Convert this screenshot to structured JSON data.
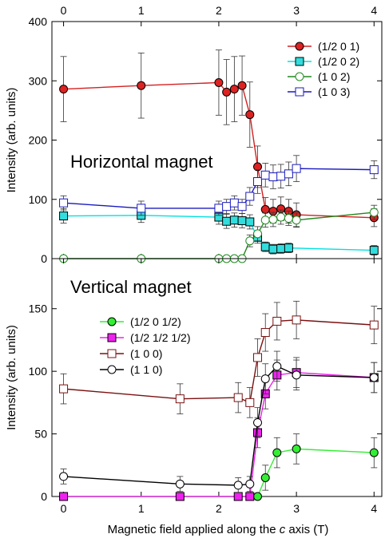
{
  "chart_data": {
    "type": "line",
    "xlabel_prefix": "Magnetic field applied along the ",
    "xlabel_italic": "c",
    "xlabel_suffix": " axis (T)",
    "xlim": [
      -0.15,
      4.1
    ],
    "xticks": [
      0,
      1,
      2,
      3,
      4
    ],
    "panels": [
      {
        "title": "Horizontal magnet",
        "ylabel": "Intensity (arb. units)",
        "ylim": [
          0,
          400
        ],
        "yticks": [
          0,
          100,
          200,
          300,
          400
        ],
        "legend": "top-right",
        "series": [
          {
            "name": "(1/2 0 1)",
            "color": "#d42020",
            "marker": "circle",
            "fill": "#dd2222",
            "x": [
              0,
              1,
              2,
              2.1,
              2.2,
              2.3,
              2.4,
              2.5,
              2.6,
              2.7,
              2.8,
              2.9,
              3,
              4
            ],
            "y": [
              286,
              292,
              297,
              281,
              286,
              292,
              243,
              155,
              83,
              80,
              84,
              80,
              74,
              69
            ],
            "err": [
              55,
              55,
              55,
              55,
              55,
              50,
              55,
              35,
              20,
              20,
              20,
              20,
              20,
              15
            ]
          },
          {
            "name": "(1/2 0 2)",
            "color": "#00e0e0",
            "marker": "square",
            "fill": "#33dddd",
            "x": [
              0,
              1,
              2,
              2.1,
              2.2,
              2.3,
              2.4,
              2.5,
              2.6,
              2.7,
              2.8,
              2.9,
              4
            ],
            "y": [
              72,
              73,
              70,
              63,
              65,
              64,
              62,
              36,
              20,
              16,
              17,
              18,
              14
            ],
            "err": [
              12,
              12,
              12,
              12,
              12,
              12,
              12,
              10,
              8,
              8,
              8,
              8,
              8
            ]
          },
          {
            "name": "(1 0 2)",
            "color": "#208a20",
            "marker": "circle",
            "fill": "none",
            "x": [
              0,
              1,
              2,
              2.1,
              2.2,
              2.3,
              2.4,
              2.5,
              2.6,
              2.7,
              2.8,
              2.9,
              3,
              4
            ],
            "y": [
              0,
              0,
              0,
              0,
              0,
              0,
              30,
              42,
              65,
              66,
              70,
              68,
              65,
              78
            ],
            "err": [
              0,
              0,
              0,
              0,
              0,
              0,
              10,
              12,
              12,
              12,
              12,
              12,
              12,
              12
            ]
          },
          {
            "name": "(1 0 3)",
            "color": "#1a1abf",
            "marker": "square",
            "fill": "none",
            "x": [
              0,
              1,
              2,
              2.1,
              2.2,
              2.3,
              2.4,
              2.5,
              2.6,
              2.7,
              2.8,
              2.9,
              3,
              4
            ],
            "y": [
              94,
              85,
              85,
              88,
              94,
              88,
              105,
              130,
              141,
              138,
              139,
              143,
              152,
              150
            ],
            "err": [
              12,
              12,
              12,
              12,
              12,
              12,
              15,
              20,
              20,
              20,
              20,
              20,
              22,
              15
            ]
          }
        ]
      },
      {
        "title": "Vertical magnet",
        "ylabel": "Intensity (arb. units)",
        "ylim": [
          0,
          190
        ],
        "yticks": [
          0,
          50,
          100,
          150
        ],
        "legend": "center-left",
        "series": [
          {
            "name": "(1/2 0 1/2)",
            "color": "#33ee33",
            "marker": "circle",
            "fill": "#33ee33",
            "x": [
              0,
              1.5,
              2.25,
              2.4,
              2.5,
              2.6,
              2.75,
              3,
              4
            ],
            "y": [
              0,
              0,
              0,
              0,
              0,
              15,
              35,
              38,
              35
            ],
            "err": [
              0,
              0,
              0,
              0,
              0,
              10,
              12,
              12,
              12
            ]
          },
          {
            "name": "(1/2 1/2 1/2)",
            "color": "#ee22ee",
            "marker": "square",
            "fill": "#ee22ee",
            "x": [
              0,
              1.5,
              2.25,
              2.4,
              2.5,
              2.6,
              2.75,
              3,
              4
            ],
            "y": [
              0,
              0,
              0,
              0,
              51,
              82,
              97,
              99,
              95
            ],
            "err": [
              0,
              0,
              0,
              0,
              12,
              12,
              12,
              12,
              12
            ]
          },
          {
            "name": "(1 0 0)",
            "color": "#7a1010",
            "marker": "square",
            "fill": "none",
            "x": [
              0,
              1.5,
              2.25,
              2.4,
              2.5,
              2.6,
              2.75,
              3,
              4
            ],
            "y": [
              86,
              78,
              79,
              75,
              111,
              131,
              140,
              141,
              137
            ],
            "err": [
              12,
              12,
              12,
              12,
              15,
              15,
              15,
              15,
              15
            ]
          },
          {
            "name": "(1 1 0)",
            "color": "#000000",
            "marker": "circle",
            "fill": "none",
            "x": [
              0,
              1.5,
              2.25,
              2.4,
              2.5,
              2.6,
              2.75,
              3,
              4
            ],
            "y": [
              16,
              10,
              9,
              10,
              59,
              94,
              104,
              97,
              95
            ],
            "err": [
              6,
              6,
              6,
              6,
              12,
              12,
              12,
              12,
              12
            ]
          }
        ]
      }
    ]
  }
}
